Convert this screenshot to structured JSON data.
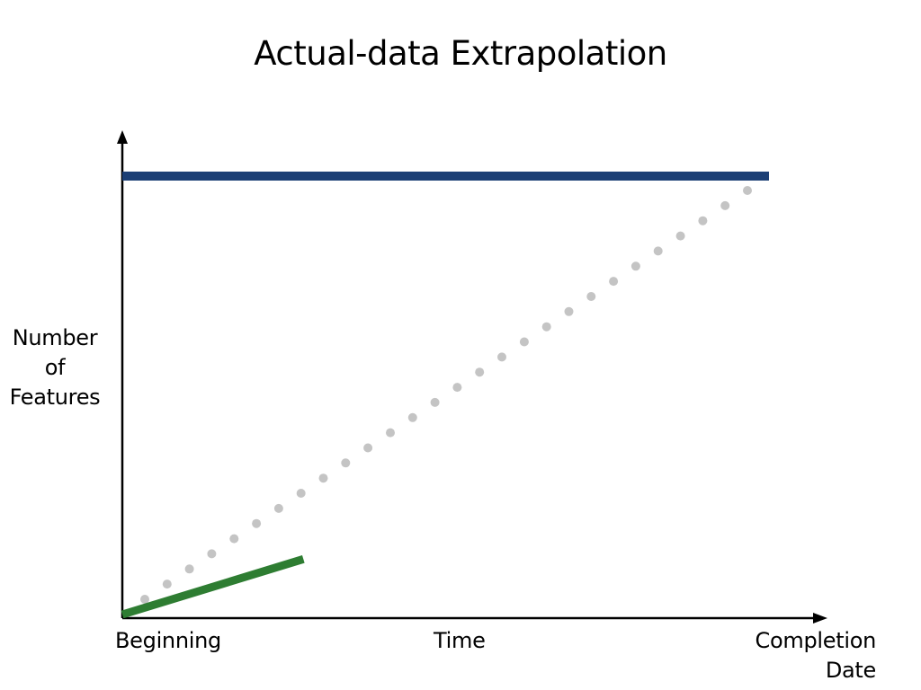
{
  "slide": {
    "title": "Actual-data Extrapolation"
  },
  "axes": {
    "y_label_lines": [
      "Number",
      "of",
      "Features"
    ],
    "x_start_label": "Beginning",
    "x_middle_label": "Time",
    "x_end_label_lines": [
      "Completion",
      "Date"
    ]
  },
  "colors": {
    "target": "#1c3f75",
    "actual": "#2e7d32",
    "extrapolation": "#c4c4c4",
    "axis": "#000000"
  },
  "lines": {
    "target_level": 1.0,
    "actual_progress": {
      "time_fraction": 0.28,
      "feature_fraction": 0.13
    },
    "extrapolation_dots": 28
  }
}
